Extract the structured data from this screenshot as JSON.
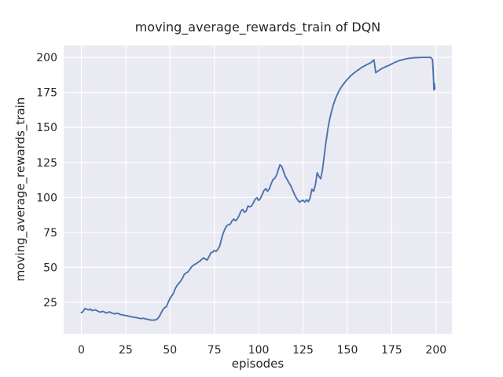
{
  "style": {
    "figure_bg": "#ffffff",
    "plot_bg": "#eaeaf2",
    "grid_color": "#ffffff",
    "text_color": "#262626",
    "line_color": "#4c72b0"
  },
  "chart_data": {
    "type": "line",
    "title": "moving_average_rewards_train of DQN",
    "xlabel": "episodes",
    "ylabel": "moving_average_rewards_train",
    "grid": true,
    "legend_position": "none",
    "xticks": [
      0,
      25,
      50,
      75,
      100,
      125,
      150,
      175,
      200
    ],
    "yticks": [
      25,
      50,
      75,
      100,
      125,
      150,
      175,
      200
    ],
    "xlim": [
      -9.95,
      208.95
    ],
    "ylim": [
      2.5,
      208.5
    ],
    "series": [
      {
        "name": "moving_average_rewards_train",
        "color": "#4c72b0",
        "points": [
          [
            0,
            17.6
          ],
          [
            1,
            18.4
          ],
          [
            2,
            20.6
          ],
          [
            3,
            20.1
          ],
          [
            4,
            19.5
          ],
          [
            5,
            20.2
          ],
          [
            6,
            19.1
          ],
          [
            7,
            19.4
          ],
          [
            8,
            19.6
          ],
          [
            9,
            18.9
          ],
          [
            10,
            18.3
          ],
          [
            11,
            18.0
          ],
          [
            12,
            18.6
          ],
          [
            13,
            18.1
          ],
          [
            14,
            17.4
          ],
          [
            15,
            17.9
          ],
          [
            16,
            18.1
          ],
          [
            17,
            17.3
          ],
          [
            18,
            17.1
          ],
          [
            19,
            16.7
          ],
          [
            20,
            17.2
          ],
          [
            21,
            16.9
          ],
          [
            22,
            16.3
          ],
          [
            23,
            16.1
          ],
          [
            24,
            15.8
          ],
          [
            25,
            15.5
          ],
          [
            26,
            15.3
          ],
          [
            27,
            15.0
          ],
          [
            28,
            14.7
          ],
          [
            29,
            14.5
          ],
          [
            30,
            14.3
          ],
          [
            31,
            14.1
          ],
          [
            32,
            13.8
          ],
          [
            33,
            13.5
          ],
          [
            34,
            13.4
          ],
          [
            35,
            13.6
          ],
          [
            36,
            13.3
          ],
          [
            37,
            12.9
          ],
          [
            38,
            12.7
          ],
          [
            39,
            12.4
          ],
          [
            40,
            12.2
          ],
          [
            41,
            12.3
          ],
          [
            42,
            12.5
          ],
          [
            43,
            13.3
          ],
          [
            44,
            15.0
          ],
          [
            45,
            17.3
          ],
          [
            46,
            19.8
          ],
          [
            47,
            21.2
          ],
          [
            48,
            22.0
          ],
          [
            49,
            25.0
          ],
          [
            50,
            27.8
          ],
          [
            51,
            29.6
          ],
          [
            52,
            31.6
          ],
          [
            53,
            35.0
          ],
          [
            54,
            37.1
          ],
          [
            55,
            38.6
          ],
          [
            56,
            40.1
          ],
          [
            57,
            42.2
          ],
          [
            58,
            44.8
          ],
          [
            59,
            45.9
          ],
          [
            60,
            46.6
          ],
          [
            61,
            48.2
          ],
          [
            62,
            50.1
          ],
          [
            63,
            51.3
          ],
          [
            64,
            52.1
          ],
          [
            65,
            52.8
          ],
          [
            66,
            53.8
          ],
          [
            67,
            54.6
          ],
          [
            68,
            55.8
          ],
          [
            69,
            56.7
          ],
          [
            70,
            55.8
          ],
          [
            71,
            55.2
          ],
          [
            72,
            57.6
          ],
          [
            73,
            60.3
          ],
          [
            74,
            60.9
          ],
          [
            75,
            62.1
          ],
          [
            76,
            61.4
          ],
          [
            77,
            62.9
          ],
          [
            78,
            65.1
          ],
          [
            79,
            70.0
          ],
          [
            80,
            74.4
          ],
          [
            81,
            77.5
          ],
          [
            82,
            79.8
          ],
          [
            83,
            80.4
          ],
          [
            84,
            80.9
          ],
          [
            85,
            83.2
          ],
          [
            86,
            84.5
          ],
          [
            87,
            83.3
          ],
          [
            88,
            84.6
          ],
          [
            89,
            87.1
          ],
          [
            90,
            90.2
          ],
          [
            91,
            91.4
          ],
          [
            92,
            89.3
          ],
          [
            93,
            90.3
          ],
          [
            94,
            93.9
          ],
          [
            95,
            93.2
          ],
          [
            96,
            93.9
          ],
          [
            97,
            96.1
          ],
          [
            98,
            98.6
          ],
          [
            99,
            99.8
          ],
          [
            100,
            97.8
          ],
          [
            101,
            99.3
          ],
          [
            102,
            102.1
          ],
          [
            103,
            104.9
          ],
          [
            104,
            106.3
          ],
          [
            105,
            104.3
          ],
          [
            106,
            106.1
          ],
          [
            107,
            109.6
          ],
          [
            108,
            112.6
          ],
          [
            109,
            113.6
          ],
          [
            110,
            115.6
          ],
          [
            111,
            119.6
          ],
          [
            112,
            123.3
          ],
          [
            113,
            122.1
          ],
          [
            114,
            118.6
          ],
          [
            115,
            115.1
          ],
          [
            116,
            112.9
          ],
          [
            117,
            110.6
          ],
          [
            118,
            108.6
          ],
          [
            119,
            105.6
          ],
          [
            120,
            102.6
          ],
          [
            121,
            100.1
          ],
          [
            122,
            98.1
          ],
          [
            123,
            96.6
          ],
          [
            124,
            97.4
          ],
          [
            125,
            97.9
          ],
          [
            126,
            96.6
          ],
          [
            127,
            98.3
          ],
          [
            128,
            96.9
          ],
          [
            129,
            99.6
          ],
          [
            130,
            105.9
          ],
          [
            131,
            104.3
          ],
          [
            132,
            109.1
          ],
          [
            133,
            117.6
          ],
          [
            134,
            114.9
          ],
          [
            135,
            113.3
          ],
          [
            136,
            120.1
          ],
          [
            137,
            130.1
          ],
          [
            138,
            140.1
          ],
          [
            139,
            148.6
          ],
          [
            140,
            155.6
          ],
          [
            141,
            161.1
          ],
          [
            142,
            165.6
          ],
          [
            143,
            169.6
          ],
          [
            144,
            172.6
          ],
          [
            145,
            175.3
          ],
          [
            146,
            177.6
          ],
          [
            147,
            179.6
          ],
          [
            148,
            181.3
          ],
          [
            149,
            182.9
          ],
          [
            150,
            184.3
          ],
          [
            151,
            185.7
          ],
          [
            152,
            187.0
          ],
          [
            153,
            188.1
          ],
          [
            154,
            189.1
          ],
          [
            155,
            190.1
          ],
          [
            156,
            191.0
          ],
          [
            157,
            191.9
          ],
          [
            158,
            192.7
          ],
          [
            159,
            193.5
          ],
          [
            160,
            194.2
          ],
          [
            161,
            194.9
          ],
          [
            162,
            195.5
          ],
          [
            163,
            196.1
          ],
          [
            164,
            197.1
          ],
          [
            165,
            198.3
          ],
          [
            166,
            189.1
          ],
          [
            167,
            190.0
          ],
          [
            168,
            190.9
          ],
          [
            169,
            191.7
          ],
          [
            170,
            192.4
          ],
          [
            171,
            193.0
          ],
          [
            172,
            193.6
          ],
          [
            173,
            194.1
          ],
          [
            174,
            194.7
          ],
          [
            175,
            195.3
          ],
          [
            176,
            196.0
          ],
          [
            177,
            196.6
          ],
          [
            178,
            197.1
          ],
          [
            179,
            197.6
          ],
          [
            180,
            198.0
          ],
          [
            181,
            198.3
          ],
          [
            182,
            198.7
          ],
          [
            183,
            199.0
          ],
          [
            184,
            199.2
          ],
          [
            185,
            199.4
          ],
          [
            186,
            199.5
          ],
          [
            187,
            199.7
          ],
          [
            188,
            199.8
          ],
          [
            189,
            199.8
          ],
          [
            190,
            199.9
          ],
          [
            191,
            199.9
          ],
          [
            192,
            200.0
          ],
          [
            193,
            200.0
          ],
          [
            194,
            200.0
          ],
          [
            195,
            200.0
          ],
          [
            196,
            200.0
          ],
          [
            197,
            200.0
          ],
          [
            198,
            198.5
          ],
          [
            198.4,
            190.0
          ],
          [
            198.8,
            176.8
          ],
          [
            199.1,
            181.2
          ],
          [
            199.4,
            177.5
          ]
        ]
      }
    ]
  }
}
